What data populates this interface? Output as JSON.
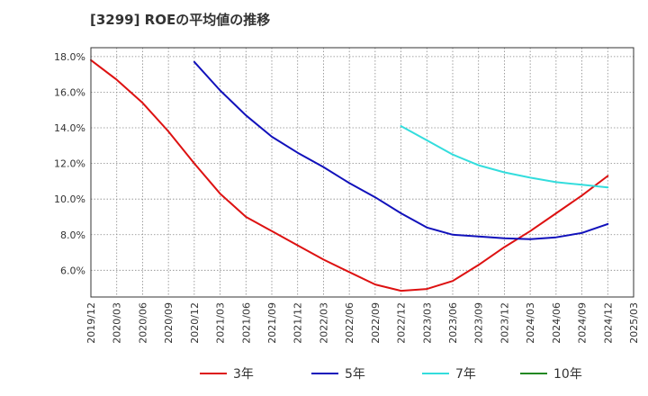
{
  "chart_data": {
    "type": "line",
    "title": "[3299]  ROEの平均値の推移",
    "xlabel": "",
    "ylabel": "",
    "ylim": [
      4.5,
      18.5
    ],
    "grid": true,
    "legend_position": "bottom",
    "y_ticks": [
      {
        "value": 6,
        "label": "6.0%"
      },
      {
        "value": 8,
        "label": "8.0%"
      },
      {
        "value": 10,
        "label": "10.0%"
      },
      {
        "value": 12,
        "label": "12.0%"
      },
      {
        "value": 14,
        "label": "14.0%"
      },
      {
        "value": 16,
        "label": "16.0%"
      },
      {
        "value": 18,
        "label": "18.0%"
      }
    ],
    "x_ticks": [
      "2019/12",
      "2020/03",
      "2020/06",
      "2020/09",
      "2020/12",
      "2021/03",
      "2021/06",
      "2021/09",
      "2021/12",
      "2022/03",
      "2022/06",
      "2022/09",
      "2022/12",
      "2023/03",
      "2023/06",
      "2023/09",
      "2023/12",
      "2024/03",
      "2024/06",
      "2024/09",
      "2024/12",
      "2025/03"
    ],
    "series": [
      {
        "name": "3年",
        "color": "#dd1111",
        "start_index": 0,
        "values": [
          17.8,
          16.7,
          15.4,
          13.8,
          12.0,
          10.3,
          9.0,
          8.2,
          7.4,
          6.6,
          5.9,
          5.2,
          4.85,
          4.95,
          5.4,
          6.3,
          7.3,
          8.2,
          9.2,
          10.2,
          11.3
        ]
      },
      {
        "name": "5年",
        "color": "#1111bb",
        "start_index": 4,
        "values": [
          17.7,
          16.1,
          14.7,
          13.5,
          12.6,
          11.8,
          10.9,
          10.1,
          9.2,
          8.4,
          8.0,
          7.9,
          7.8,
          7.75,
          7.85,
          8.1,
          8.6
        ]
      },
      {
        "name": "7年",
        "color": "#33dddd",
        "start_index": 12,
        "values": [
          14.1,
          13.3,
          12.5,
          11.9,
          11.5,
          11.2,
          10.95,
          10.8,
          10.65
        ]
      },
      {
        "name": "10年",
        "color": "#228822",
        "start_index": 0,
        "values": []
      }
    ]
  }
}
